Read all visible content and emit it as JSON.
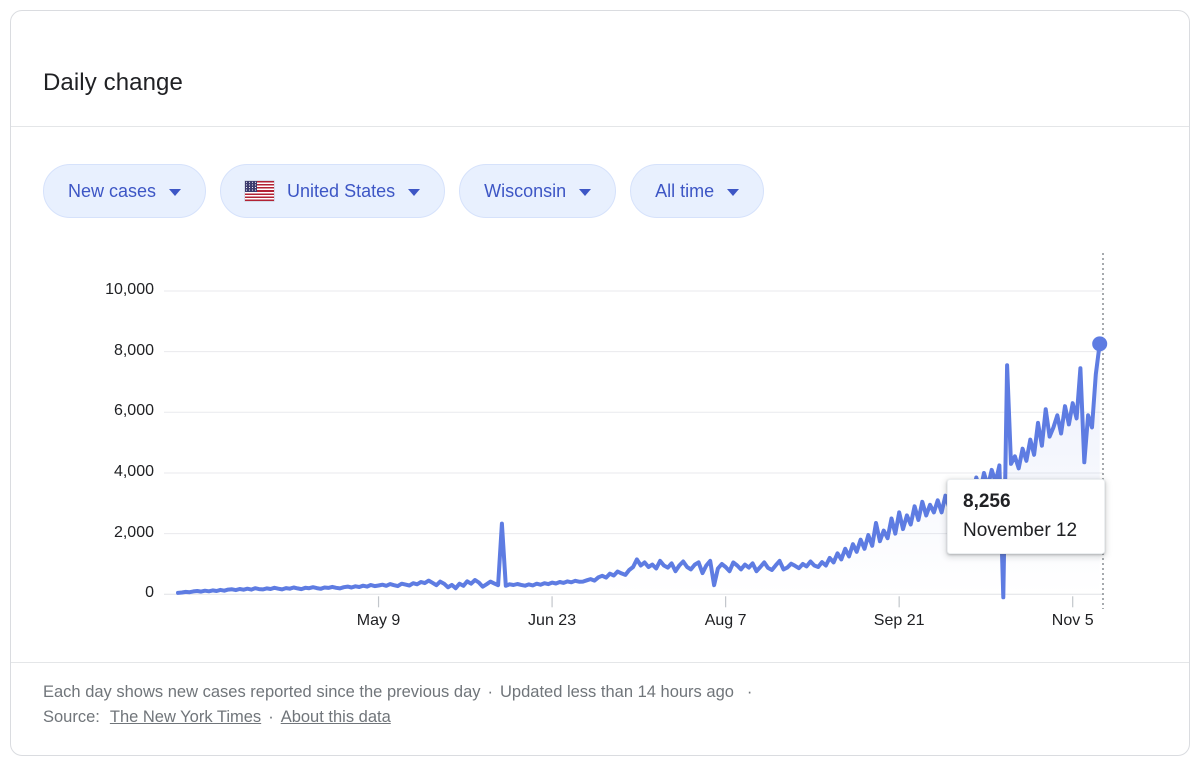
{
  "header": {
    "title": "Daily change"
  },
  "filters": {
    "metric": {
      "label": "New cases"
    },
    "country": {
      "label": "United States"
    },
    "region": {
      "label": "Wisconsin"
    },
    "time": {
      "label": "All time"
    }
  },
  "chart_data": {
    "type": "line",
    "title": "Daily change",
    "metric": "New cases",
    "location": "Wisconsin, United States",
    "time_range": "All time",
    "start_date": "2020-03-18",
    "end_date": "2020-11-12",
    "ylim": [
      0,
      10000
    ],
    "y_ticks": [
      "0",
      "2,000",
      "4,000",
      "6,000",
      "8,000",
      "10,000"
    ],
    "x_ticks": [
      {
        "label": "May 9",
        "index": 52
      },
      {
        "label": "Jun 23",
        "index": 97
      },
      {
        "label": "Aug 7",
        "index": 142
      },
      {
        "label": "Sep 21",
        "index": 187
      },
      {
        "label": "Nov 5",
        "index": 232
      }
    ],
    "highlight": {
      "value": "8,256",
      "date": "November 12",
      "index": 239,
      "numeric_value": 8256
    },
    "grid": true,
    "values": [
      45,
      60,
      80,
      70,
      95,
      110,
      90,
      120,
      100,
      130,
      110,
      145,
      120,
      155,
      165,
      140,
      175,
      150,
      185,
      155,
      200,
      170,
      160,
      195,
      175,
      215,
      185,
      160,
      205,
      185,
      225,
      195,
      170,
      215,
      200,
      235,
      205,
      180,
      225,
      210,
      245,
      215,
      195,
      235,
      255,
      225,
      265,
      240,
      285,
      255,
      305,
      270,
      290,
      315,
      280,
      335,
      300,
      270,
      350,
      320,
      290,
      365,
      330,
      405,
      370,
      450,
      380,
      300,
      420,
      350,
      230,
      310,
      200,
      350,
      280,
      430,
      350,
      470,
      390,
      250,
      330,
      420,
      360,
      300,
      2330,
      280,
      330,
      305,
      340,
      310,
      285,
      325,
      295,
      350,
      315,
      365,
      335,
      385,
      355,
      405,
      375,
      425,
      395,
      445,
      415,
      420,
      460,
      500,
      450,
      560,
      610,
      550,
      680,
      620,
      750,
      690,
      640,
      800,
      900,
      1150,
      950,
      1050,
      900,
      980,
      850,
      1100,
      950,
      880,
      1020,
      760,
      950,
      1080,
      900,
      820,
      980,
      1050,
      700,
      950,
      1100,
      300,
      850,
      1000,
      900,
      760,
      1050,
      950,
      820,
      980,
      880,
      1020,
      760,
      900,
      1050,
      870,
      800,
      960,
      1100,
      820,
      880,
      1010,
      940,
      860,
      1000,
      920,
      1080,
      950,
      900,
      1060,
      950,
      1200,
      1050,
      1350,
      1150,
      1500,
      1250,
      1650,
      1400,
      1800,
      1500,
      1950,
      1600,
      2350,
      1750,
      2100,
      1850,
      2500,
      2000,
      2700,
      2150,
      2600,
      2300,
      2900,
      2450,
      3050,
      2600,
      2950,
      2700,
      3100,
      2700,
      3250,
      2850,
      3400,
      3000,
      3550,
      3100,
      3700,
      3250,
      3850,
      3400,
      4000,
      3550,
      4100,
      3700,
      4250,
      -100,
      7550,
      4300,
      4550,
      4150,
      4800,
      4400,
      5100,
      4600,
      5650,
      4900,
      6100,
      5200,
      5500,
      5900,
      5300,
      6200,
      5600,
      6300,
      5800,
      7450,
      4350,
      5900,
      5500,
      7250,
      8256
    ]
  },
  "footer": {
    "line1": "Each day shows new cases reported since the previous day",
    "separator": "·",
    "updated": "Updated less than 14 hours ago",
    "source_label": "Source:",
    "source_link": "The New York Times",
    "about_link": "About this data"
  },
  "colors": {
    "line": "#5e7ce2",
    "marker": "#5e7ce2",
    "chip_background": "#e8f0fe",
    "chip_text": "#3d56c5",
    "grid": "#e9eaed",
    "axis_text": "#202124",
    "footer_text": "#70757a",
    "title_text": "#202124"
  }
}
